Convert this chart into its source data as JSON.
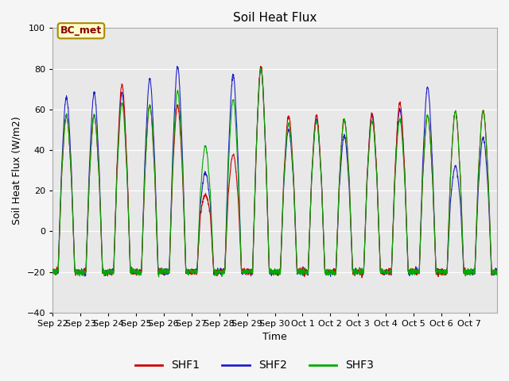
{
  "title": "Soil Heat Flux",
  "xlabel": "Time",
  "ylabel": "Soil Heat Flux (W/m2)",
  "ylim": [
    -40,
    100
  ],
  "yticks": [
    -40,
    -20,
    0,
    20,
    40,
    60,
    80,
    100
  ],
  "fig_bg_color": "#f5f5f5",
  "plot_bg_color": "#e8e8e8",
  "colors": {
    "SHF1": "#cc0000",
    "SHF2": "#2222cc",
    "SHF3": "#00aa00"
  },
  "legend_label": "BC_met",
  "x_labels": [
    "Sep 22",
    "Sep 23",
    "Sep 24",
    "Sep 25",
    "Sep 26",
    "Sep 27",
    "Sep 28",
    "Sep 29",
    "Sep 30",
    "Oct 1",
    "Oct 2",
    "Oct 3",
    "Oct 4",
    "Oct 5",
    "Oct 6",
    "Oct 7"
  ],
  "n_days": 16,
  "peaks_shf1": [
    57,
    57,
    72,
    62,
    62,
    18,
    38,
    81,
    57,
    57,
    55,
    58,
    63,
    57,
    59,
    59
  ],
  "peaks_shf2": [
    66,
    68,
    68,
    75,
    81,
    29,
    77,
    80,
    50,
    55,
    47,
    57,
    60,
    71,
    32,
    46
  ],
  "peaks_shf3": [
    57,
    57,
    63,
    62,
    69,
    42,
    65,
    80,
    53,
    54,
    55,
    54,
    55,
    57,
    59,
    59
  ],
  "night_base": -20,
  "pts_per_day": 144
}
